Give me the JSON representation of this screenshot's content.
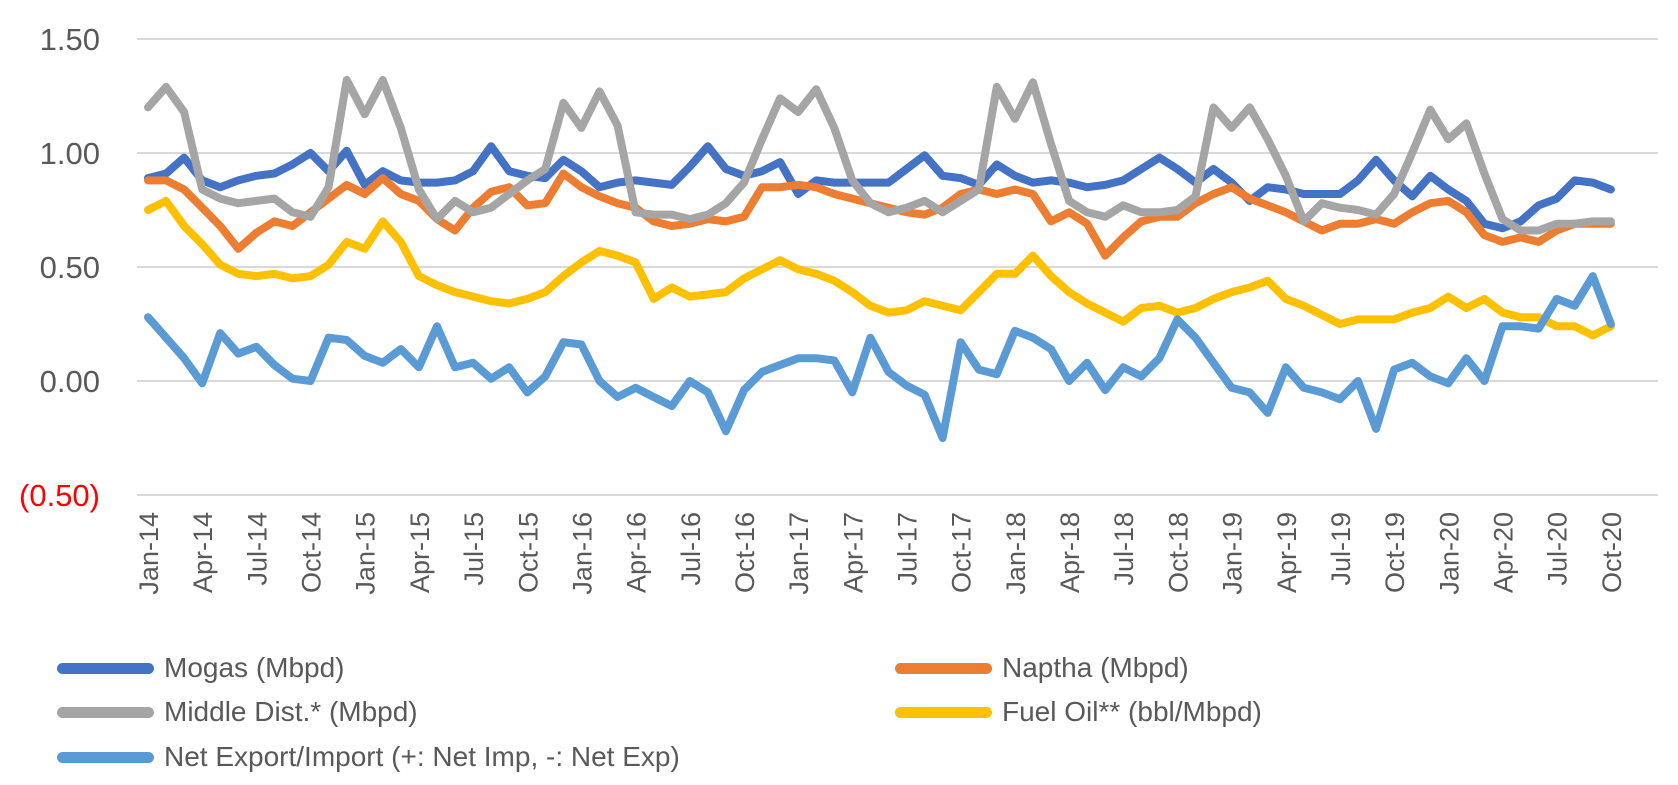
{
  "chart_data": {
    "type": "line",
    "title": "",
    "xlabel": "",
    "ylabel": "",
    "grid": true,
    "legend_position": "bottom-left, two columns",
    "x_frequency": "monthly from Jan-14 to Oct-20 (82 points), tick labels quarterly",
    "x_tick_labels": [
      "Jan-14",
      "Apr-14",
      "Jul-14",
      "Oct-14",
      "Jan-15",
      "Apr-15",
      "Jul-15",
      "Oct-15",
      "Jan-16",
      "Apr-16",
      "Jul-16",
      "Oct-16",
      "Jan-17",
      "Apr-17",
      "Jul-17",
      "Oct-17",
      "Jan-18",
      "Apr-18",
      "Jul-18",
      "Oct-18",
      "Jan-19",
      "Apr-19",
      "Jul-19",
      "Oct-19",
      "Jan-20",
      "Apr-20",
      "Jul-20",
      "Oct-20"
    ],
    "y_ticks": [
      {
        "label": "1.50",
        "value": 1.5,
        "color": "#595959"
      },
      {
        "label": "1.00",
        "value": 1.0,
        "color": "#595959"
      },
      {
        "label": "0.50",
        "value": 0.5,
        "color": "#595959"
      },
      {
        "label": "0.00",
        "value": 0.0,
        "color": "#595959"
      },
      {
        "label": "(0.50)",
        "value": -0.5,
        "color": "#FF0000"
      }
    ],
    "ylim": [
      -0.5,
      1.5
    ],
    "series": [
      {
        "name": "Mogas (Mbpd)",
        "color": "#4472C4",
        "values": [
          0.89,
          0.91,
          0.98,
          0.88,
          0.85,
          0.88,
          0.9,
          0.91,
          0.95,
          1.0,
          0.92,
          1.01,
          0.86,
          0.92,
          0.88,
          0.87,
          0.87,
          0.88,
          0.92,
          1.03,
          0.92,
          0.9,
          0.89,
          0.97,
          0.92,
          0.85,
          0.87,
          0.88,
          0.87,
          0.86,
          0.94,
          1.03,
          0.93,
          0.9,
          0.92,
          0.96,
          0.82,
          0.88,
          0.87,
          0.87,
          0.87,
          0.87,
          0.93,
          0.99,
          0.9,
          0.89,
          0.86,
          0.95,
          0.9,
          0.87,
          0.88,
          0.87,
          0.85,
          0.86,
          0.88,
          0.93,
          0.98,
          0.93,
          0.87,
          0.93,
          0.87,
          0.79,
          0.85,
          0.84,
          0.82,
          0.82,
          0.82,
          0.88,
          0.97,
          0.88,
          0.81,
          0.9,
          0.84,
          0.79,
          0.69,
          0.67,
          0.7,
          0.77,
          0.8,
          0.88,
          0.87,
          0.84
        ]
      },
      {
        "name": "Naptha (Mbpd)",
        "color": "#ED7D31",
        "values": [
          0.88,
          0.88,
          0.84,
          0.76,
          0.68,
          0.58,
          0.65,
          0.7,
          0.68,
          0.74,
          0.8,
          0.86,
          0.82,
          0.89,
          0.82,
          0.79,
          0.71,
          0.66,
          0.76,
          0.83,
          0.85,
          0.77,
          0.78,
          0.91,
          0.85,
          0.81,
          0.78,
          0.76,
          0.7,
          0.68,
          0.69,
          0.71,
          0.7,
          0.72,
          0.85,
          0.85,
          0.86,
          0.85,
          0.82,
          0.8,
          0.78,
          0.76,
          0.74,
          0.73,
          0.76,
          0.82,
          0.84,
          0.82,
          0.84,
          0.82,
          0.7,
          0.74,
          0.69,
          0.55,
          0.63,
          0.7,
          0.72,
          0.72,
          0.78,
          0.82,
          0.85,
          0.8,
          0.77,
          0.74,
          0.7,
          0.66,
          0.69,
          0.69,
          0.71,
          0.69,
          0.74,
          0.78,
          0.79,
          0.74,
          0.64,
          0.61,
          0.63,
          0.61,
          0.66,
          0.69,
          0.69,
          0.69
        ]
      },
      {
        "name": "Middle Dist.* (Mbpd)",
        "color": "#A5A5A5",
        "values": [
          1.2,
          1.29,
          1.18,
          0.84,
          0.8,
          0.78,
          0.79,
          0.8,
          0.74,
          0.72,
          0.85,
          1.32,
          1.17,
          1.32,
          1.11,
          0.84,
          0.71,
          0.79,
          0.74,
          0.76,
          0.82,
          0.88,
          0.93,
          1.22,
          1.11,
          1.27,
          1.12,
          0.74,
          0.73,
          0.73,
          0.71,
          0.73,
          0.78,
          0.87,
          1.06,
          1.24,
          1.18,
          1.28,
          1.11,
          0.88,
          0.78,
          0.74,
          0.76,
          0.79,
          0.74,
          0.79,
          0.84,
          1.29,
          1.15,
          1.31,
          1.04,
          0.79,
          0.74,
          0.72,
          0.77,
          0.74,
          0.74,
          0.75,
          0.81,
          1.2,
          1.11,
          1.2,
          1.06,
          0.9,
          0.7,
          0.78,
          0.76,
          0.75,
          0.73,
          0.82,
          1.0,
          1.19,
          1.06,
          1.13,
          0.91,
          0.71,
          0.66,
          0.66,
          0.69,
          0.69,
          0.7,
          0.7
        ]
      },
      {
        "name": "Fuel Oil** (bbl/Mbpd)",
        "color": "#FFC000",
        "values": [
          0.75,
          0.79,
          0.68,
          0.6,
          0.51,
          0.47,
          0.46,
          0.47,
          0.45,
          0.46,
          0.51,
          0.61,
          0.58,
          0.7,
          0.61,
          0.46,
          0.42,
          0.39,
          0.37,
          0.35,
          0.34,
          0.36,
          0.39,
          0.46,
          0.52,
          0.57,
          0.55,
          0.52,
          0.36,
          0.41,
          0.37,
          0.38,
          0.39,
          0.45,
          0.49,
          0.53,
          0.49,
          0.47,
          0.44,
          0.39,
          0.33,
          0.3,
          0.31,
          0.35,
          0.33,
          0.31,
          0.39,
          0.47,
          0.47,
          0.55,
          0.46,
          0.39,
          0.34,
          0.3,
          0.26,
          0.32,
          0.33,
          0.3,
          0.32,
          0.36,
          0.39,
          0.41,
          0.44,
          0.36,
          0.33,
          0.29,
          0.25,
          0.27,
          0.27,
          0.27,
          0.3,
          0.32,
          0.37,
          0.32,
          0.36,
          0.3,
          0.28,
          0.28,
          0.24,
          0.24,
          0.2,
          0.24
        ]
      },
      {
        "name": "Net Export/Import (+: Net Imp, -: Net Exp)",
        "color": "#5B9BD5",
        "values": [
          0.28,
          0.19,
          0.1,
          -0.01,
          0.21,
          0.12,
          0.15,
          0.07,
          0.01,
          0.0,
          0.19,
          0.18,
          0.11,
          0.08,
          0.14,
          0.06,
          0.24,
          0.06,
          0.08,
          0.01,
          0.06,
          -0.05,
          0.02,
          0.17,
          0.16,
          0.0,
          -0.07,
          -0.03,
          -0.07,
          -0.11,
          0.0,
          -0.05,
          -0.22,
          -0.04,
          0.04,
          0.07,
          0.1,
          0.1,
          0.09,
          -0.05,
          0.19,
          0.04,
          -0.02,
          -0.06,
          -0.25,
          0.17,
          0.05,
          0.03,
          0.22,
          0.19,
          0.14,
          0.0,
          0.08,
          -0.04,
          0.06,
          0.02,
          0.1,
          0.27,
          0.19,
          0.08,
          -0.03,
          -0.05,
          -0.14,
          0.06,
          -0.03,
          -0.05,
          -0.08,
          0.0,
          -0.21,
          0.05,
          0.08,
          0.02,
          -0.01,
          0.1,
          0.0,
          0.24,
          0.24,
          0.23,
          0.36,
          0.33,
          0.46,
          0.25
        ]
      }
    ]
  },
  "legend": {
    "items": [
      {
        "label": "Mogas (Mbpd)",
        "color": "#4472C4",
        "row": 0,
        "col": 0
      },
      {
        "label": "Naptha (Mbpd)",
        "color": "#ED7D31",
        "row": 0,
        "col": 1
      },
      {
        "label": "Middle Dist.* (Mbpd)",
        "color": "#A5A5A5",
        "row": 1,
        "col": 0
      },
      {
        "label": "Fuel Oil** (bbl/Mbpd)",
        "color": "#FFC000",
        "row": 1,
        "col": 1
      },
      {
        "label": "Net Export/Import (+: Net Imp, -: Net Exp)",
        "color": "#5B9BD5",
        "row": 2,
        "col": 0
      }
    ]
  },
  "style": {
    "grid_color": "#D9D9D9",
    "tick_text_color": "#595959",
    "negative_tick_color": "#FF0000",
    "background": "#FFFFFF"
  }
}
